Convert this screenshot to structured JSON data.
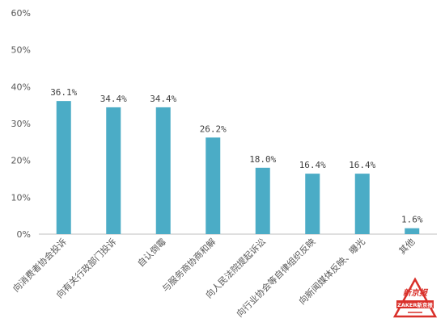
{
  "chart_data": {
    "type": "bar",
    "categories": [
      "向消费者协会投诉",
      "向有关行政部门投诉",
      "自认倒霉",
      "与服务商协商和解",
      "向人民法院提起诉讼",
      "向行业协会等自律组织反映",
      "向新闻媒体反映、曝光",
      "其他"
    ],
    "values": [
      36.1,
      34.4,
      34.4,
      26.2,
      18.0,
      16.4,
      16.4,
      1.6
    ],
    "value_labels": [
      "36.1%",
      "34.4%",
      "34.4%",
      "26.2%",
      "18.0%",
      "16.4%",
      "16.4%",
      "1.6%"
    ],
    "y_ticks": [
      "0%",
      "10%",
      "20%",
      "30%",
      "40%",
      "50%",
      "60%"
    ],
    "ylim": [
      0,
      60
    ],
    "grid": false,
    "legend": "none",
    "title": "",
    "xlabel": "",
    "ylabel": "",
    "colors": {
      "bar": "#4BACC6",
      "axis": "#BFBFBF",
      "watermark_red": "#D9302A"
    }
  },
  "watermark": {
    "logo_text": "新京报",
    "brand_text": "ZAKER新京报"
  }
}
